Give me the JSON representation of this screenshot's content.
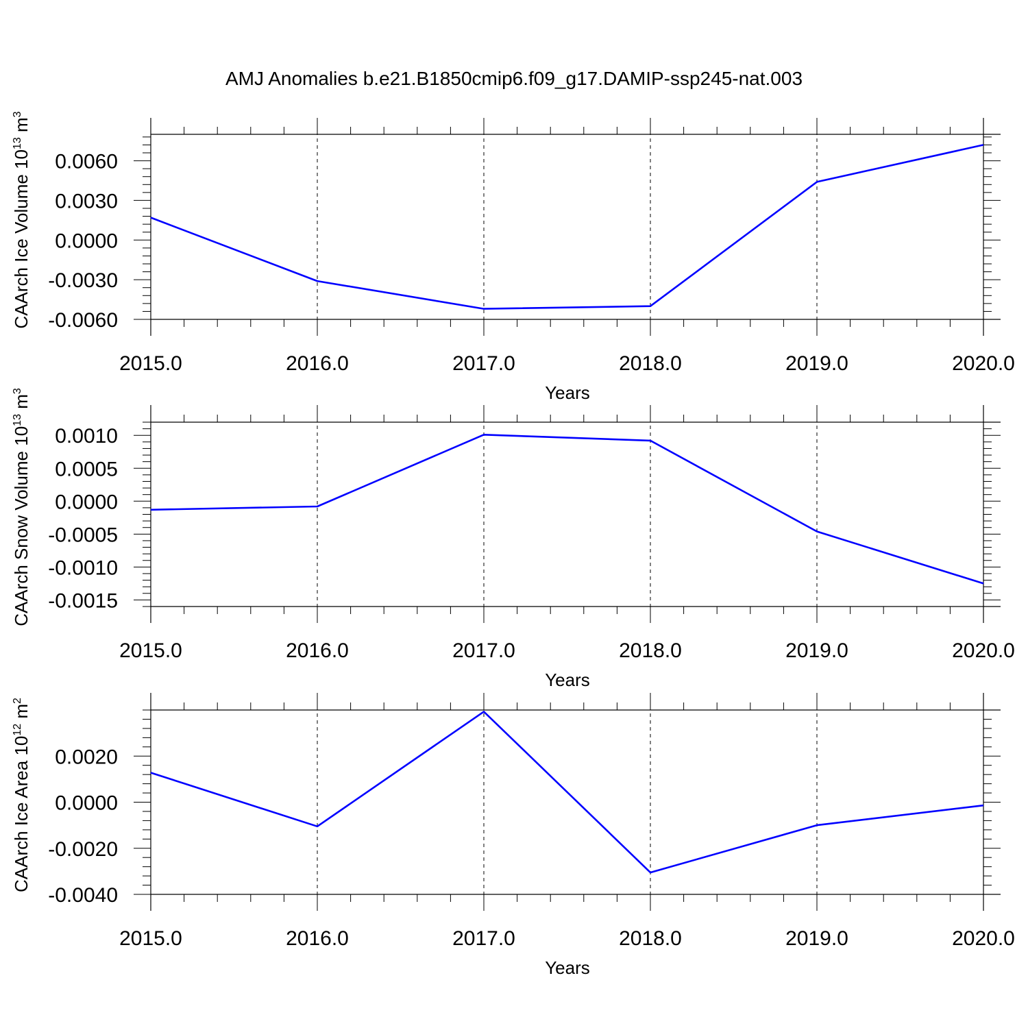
{
  "figure": {
    "title": "AMJ Anomalies b.e21.B1850cmip6.f09_g17.DAMIP-ssp245-nat.003"
  },
  "chart_data": [
    {
      "type": "line",
      "title": "",
      "xlabel": "Years",
      "ylabel": "CAArch Ice Volume 10",
      "ylabel_exponent": "13",
      "ylabel_unit": "m",
      "ylabel_unit_exponent": "3",
      "x": [
        2015.0,
        2016.0,
        2017.0,
        2018.0,
        2019.0,
        2020.0
      ],
      "series": [
        {
          "values": [
            0.0017,
            -0.0031,
            -0.0052,
            -0.005,
            0.0044,
            0.0072
          ],
          "color": "#0000ff"
        }
      ],
      "xlim": [
        2015.0,
        2020.0
      ],
      "ylim": [
        -0.006,
        0.008
      ],
      "xticks": [
        2015.0,
        2016.0,
        2017.0,
        2018.0,
        2019.0,
        2020.0
      ],
      "xtick_labels": [
        "2015.0",
        "2016.0",
        "2017.0",
        "2018.0",
        "2019.0",
        "2020.0"
      ],
      "yticks": [
        0.006,
        0.003,
        0.0,
        -0.003,
        -0.006
      ],
      "ytick_labels": [
        "0.0060",
        "0.0030",
        "0.0000",
        "-0.0030",
        "-0.0060"
      ],
      "grid": "vertical dashed at major x ticks",
      "legend": "none"
    },
    {
      "type": "line",
      "title": "",
      "xlabel": "Years",
      "ylabel": "CAArch Snow Volume 10",
      "ylabel_exponent": "13",
      "ylabel_unit": "m",
      "ylabel_unit_exponent": "3",
      "x": [
        2015.0,
        2016.0,
        2017.0,
        2018.0,
        2019.0,
        2020.0
      ],
      "series": [
        {
          "values": [
            -0.00013,
            -8e-05,
            0.00101,
            0.00092,
            -0.00046,
            -0.00125
          ],
          "color": "#0000ff"
        }
      ],
      "xlim": [
        2015.0,
        2020.0
      ],
      "ylim": [
        -0.0016,
        0.0012
      ],
      "xticks": [
        2015.0,
        2016.0,
        2017.0,
        2018.0,
        2019.0,
        2020.0
      ],
      "xtick_labels": [
        "2015.0",
        "2016.0",
        "2017.0",
        "2018.0",
        "2019.0",
        "2020.0"
      ],
      "yticks": [
        0.001,
        0.0005,
        0.0,
        -0.0005,
        -0.001,
        -0.0015
      ],
      "ytick_labels": [
        "0.0010",
        "0.0005",
        "0.0000",
        "-0.0005",
        "-0.0010",
        "-0.0015"
      ],
      "grid": "vertical dashed at major x ticks",
      "legend": "none"
    },
    {
      "type": "line",
      "title": "",
      "xlabel": "Years",
      "ylabel": "CAArch Ice Area 10",
      "ylabel_exponent": "12",
      "ylabel_unit": "m",
      "ylabel_unit_exponent": "2",
      "x": [
        2015.0,
        2016.0,
        2017.0,
        2018.0,
        2019.0,
        2020.0
      ],
      "series": [
        {
          "values": [
            0.00128,
            -0.00105,
            0.00393,
            -0.00305,
            -0.001,
            -0.00014
          ],
          "color": "#0000ff"
        }
      ],
      "xlim": [
        2015.0,
        2020.0
      ],
      "ylim": [
        -0.004,
        0.004
      ],
      "xticks": [
        2015.0,
        2016.0,
        2017.0,
        2018.0,
        2019.0,
        2020.0
      ],
      "xtick_labels": [
        "2015.0",
        "2016.0",
        "2017.0",
        "2018.0",
        "2019.0",
        "2020.0"
      ],
      "yticks": [
        0.002,
        0.0,
        -0.002,
        -0.004
      ],
      "ytick_labels": [
        "0.0020",
        "0.0000",
        "-0.0020",
        "-0.0040"
      ],
      "grid": "vertical dashed at major x ticks",
      "legend": "none"
    }
  ]
}
